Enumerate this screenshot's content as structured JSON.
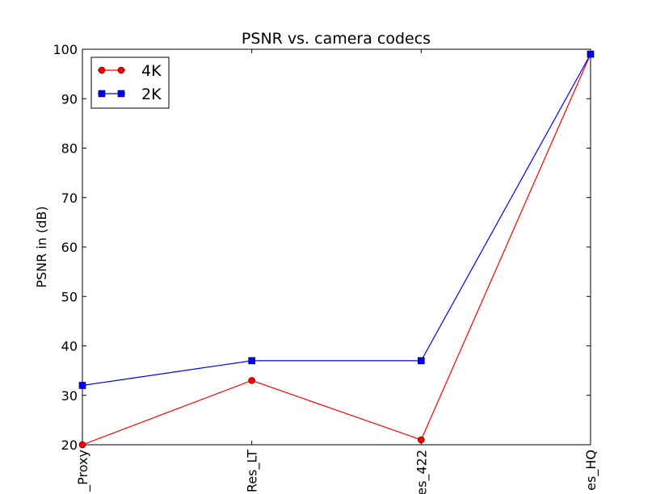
{
  "chart_data": {
    "type": "line",
    "title": "PSNR vs. camera codecs",
    "xlabel": "",
    "ylabel": "PSNR in (dB)",
    "categories": [
      "_Proxy",
      "Res_LT",
      "es_422",
      "es_HQ"
    ],
    "ylim": [
      20,
      100
    ],
    "yticks": [
      20,
      30,
      40,
      50,
      60,
      70,
      80,
      90,
      100
    ],
    "grid": false,
    "legend_position": "top-left",
    "series": [
      {
        "name": "4K",
        "color": "#ff0000",
        "marker": "circle",
        "values": [
          20,
          33,
          21,
          99
        ]
      },
      {
        "name": "2K",
        "color": "#0000ff",
        "marker": "square",
        "values": [
          32,
          37,
          37,
          99
        ]
      }
    ]
  }
}
